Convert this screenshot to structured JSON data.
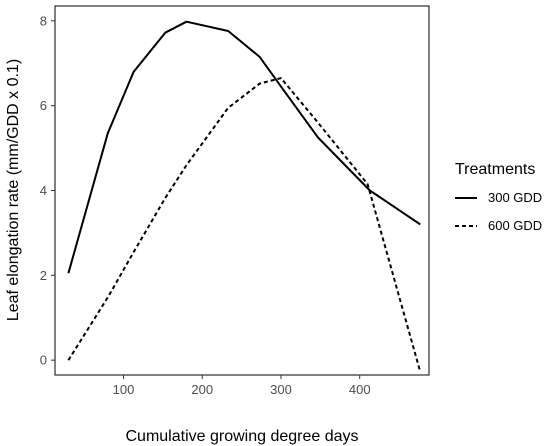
{
  "chart_data": {
    "type": "line",
    "xlabel": "Cumulative growing degree days",
    "ylabel": "Leaf elongation rate (mm/GDD x 0.1)",
    "xlim": [
      13,
      488
    ],
    "ylim": [
      -0.35,
      8.35
    ],
    "xticks": [
      100,
      200,
      300,
      400
    ],
    "yticks": [
      0,
      2,
      4,
      6,
      8
    ],
    "grid": false,
    "legend": {
      "title": "Treatments",
      "position": "right"
    },
    "series": [
      {
        "name": "300 GDD",
        "style": "solid",
        "x": [
          30,
          80,
          113,
          153,
          180,
          233,
          273,
          300,
          347,
          413,
          477
        ],
        "y": [
          2.05,
          5.35,
          6.8,
          7.72,
          7.98,
          7.76,
          7.15,
          6.45,
          5.25,
          4.0,
          3.2
        ]
      },
      {
        "name": "600 GDD",
        "style": "dashed",
        "x": [
          30,
          80,
          113,
          153,
          180,
          233,
          273,
          300,
          347,
          410,
          477
        ],
        "y": [
          0.0,
          1.48,
          2.55,
          3.82,
          4.6,
          5.95,
          6.52,
          6.65,
          5.6,
          4.15,
          -0.28
        ]
      }
    ]
  }
}
